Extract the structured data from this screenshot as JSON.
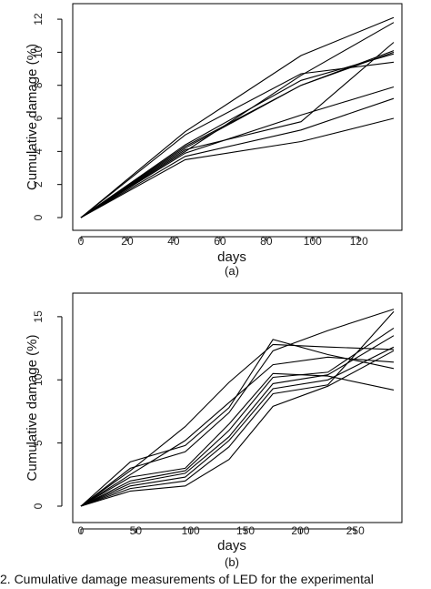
{
  "caption": "2.  Cumulative damage measurements of LED for the experimental",
  "chart_data": [
    {
      "type": "line",
      "panel_label": "(a)",
      "xlabel": "days",
      "ylabel": "Cumulative damage (%)",
      "xlim": [
        0,
        135
      ],
      "ylim": [
        0,
        12.5
      ],
      "xticks": [
        0,
        20,
        40,
        60,
        80,
        100,
        120
      ],
      "yticks": [
        0,
        2,
        4,
        6,
        8,
        10,
        12
      ],
      "x": [
        0,
        45,
        95,
        135
      ],
      "series": [
        {
          "values": [
            0,
            5.2,
            9.8,
            12.1
          ]
        },
        {
          "values": [
            0,
            5.0,
            8.7,
            9.4
          ]
        },
        {
          "values": [
            0,
            4.4,
            8.3,
            9.9
          ]
        },
        {
          "values": [
            0,
            4.3,
            8.0,
            10.1
          ]
        },
        {
          "values": [
            0,
            4.2,
            8.0,
            10.0
          ]
        },
        {
          "values": [
            0,
            4.1,
            5.8,
            10.6
          ]
        },
        {
          "values": [
            0,
            4.0,
            8.6,
            11.8
          ]
        },
        {
          "values": [
            0,
            3.9,
            6.2,
            7.9
          ]
        },
        {
          "values": [
            0,
            3.7,
            5.3,
            7.2
          ]
        },
        {
          "values": [
            0,
            3.5,
            4.6,
            6.0
          ]
        }
      ]
    },
    {
      "type": "line",
      "panel_label": "(b)",
      "xlabel": "days",
      "ylabel": "Cumulative damage (%)",
      "xlim": [
        0,
        285
      ],
      "ylim": [
        0,
        16
      ],
      "xticks": [
        0,
        50,
        100,
        150,
        200,
        250
      ],
      "yticks": [
        0,
        5,
        10,
        15
      ],
      "x": [
        0,
        45,
        95,
        135,
        175,
        225,
        285
      ],
      "series": [
        {
          "values": [
            0,
            3.5,
            4.8,
            7.8,
            13.2,
            12.0,
            10.9
          ]
        },
        {
          "values": [
            0,
            3.0,
            4.3,
            7.4,
            12.3,
            13.9,
            15.6
          ]
        },
        {
          "values": [
            0,
            2.8,
            6.3,
            9.8,
            12.8,
            12.6,
            12.4
          ]
        },
        {
          "values": [
            0,
            2.5,
            5.2,
            8.2,
            11.2,
            11.8,
            11.4
          ]
        },
        {
          "values": [
            0,
            2.3,
            3.0,
            6.5,
            10.5,
            10.3,
            9.2
          ]
        },
        {
          "values": [
            0,
            2.0,
            2.8,
            6.0,
            10.2,
            10.6,
            14.1
          ]
        },
        {
          "values": [
            0,
            1.8,
            2.6,
            5.5,
            9.7,
            10.4,
            13.5
          ]
        },
        {
          "values": [
            0,
            1.6,
            2.3,
            5.2,
            9.3,
            10.0,
            12.6
          ]
        },
        {
          "values": [
            0,
            1.4,
            2.0,
            4.7,
            8.9,
            9.6,
            15.4
          ]
        },
        {
          "values": [
            0,
            1.2,
            1.6,
            3.7,
            7.9,
            9.5,
            12.3
          ]
        }
      ]
    }
  ]
}
